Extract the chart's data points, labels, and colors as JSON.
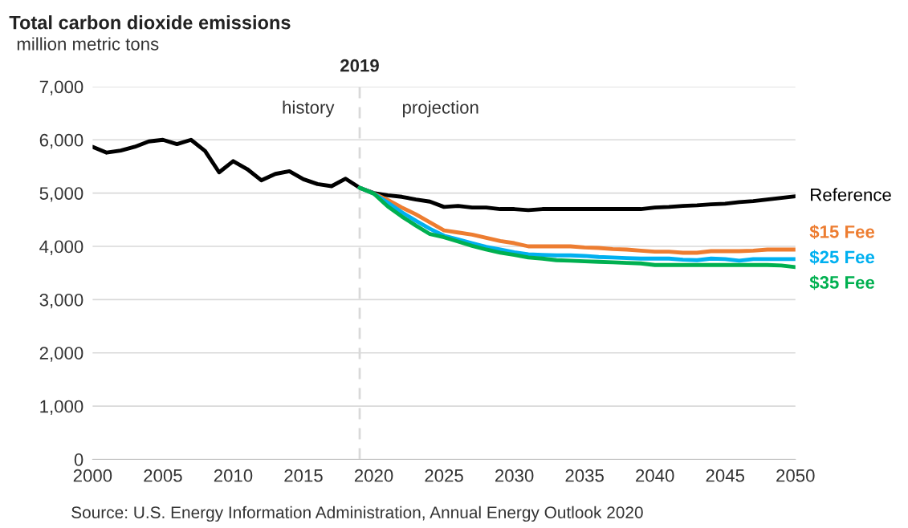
{
  "chart_data": {
    "type": "line",
    "title": "Total carbon dioxide emissions",
    "subtitle": "million metric tons",
    "series": [
      {
        "name": "Reference",
        "color": "#000000",
        "x": [
          2000,
          2001,
          2002,
          2003,
          2004,
          2005,
          2006,
          2007,
          2008,
          2009,
          2010,
          2011,
          2012,
          2013,
          2014,
          2015,
          2016,
          2017,
          2018,
          2019,
          2020,
          2021,
          2022,
          2023,
          2024,
          2025,
          2026,
          2027,
          2028,
          2029,
          2030,
          2031,
          2032,
          2033,
          2034,
          2035,
          2036,
          2037,
          2038,
          2039,
          2040,
          2041,
          2042,
          2043,
          2044,
          2045,
          2046,
          2047,
          2048,
          2049,
          2050
        ],
        "values": [
          5870,
          5760,
          5800,
          5870,
          5970,
          6000,
          5920,
          6000,
          5790,
          5390,
          5600,
          5450,
          5240,
          5360,
          5410,
          5260,
          5170,
          5130,
          5270,
          5100,
          5000,
          4960,
          4930,
          4880,
          4840,
          4740,
          4760,
          4730,
          4730,
          4700,
          4700,
          4680,
          4700,
          4700,
          4700,
          4700,
          4700,
          4700,
          4700,
          4700,
          4730,
          4740,
          4760,
          4770,
          4790,
          4800,
          4830,
          4850,
          4880,
          4910,
          4940
        ]
      },
      {
        "name": "$15 Fee",
        "color": "#ed7d31",
        "x": [
          2019,
          2020,
          2021,
          2022,
          2023,
          2024,
          2025,
          2026,
          2027,
          2028,
          2029,
          2030,
          2031,
          2032,
          2033,
          2034,
          2035,
          2036,
          2037,
          2038,
          2039,
          2040,
          2041,
          2042,
          2043,
          2044,
          2045,
          2046,
          2047,
          2048,
          2049,
          2050
        ],
        "values": [
          5100,
          4990,
          4870,
          4730,
          4600,
          4450,
          4300,
          4260,
          4220,
          4160,
          4100,
          4060,
          4000,
          4000,
          4000,
          4000,
          3980,
          3970,
          3950,
          3940,
          3920,
          3900,
          3900,
          3880,
          3880,
          3910,
          3910,
          3910,
          3920,
          3940,
          3940,
          3940
        ]
      },
      {
        "name": "$25 Fee",
        "color": "#00b0f0",
        "x": [
          2019,
          2020,
          2021,
          2022,
          2023,
          2024,
          2025,
          2026,
          2027,
          2028,
          2029,
          2030,
          2031,
          2032,
          2033,
          2034,
          2035,
          2036,
          2037,
          2038,
          2039,
          2040,
          2041,
          2042,
          2043,
          2044,
          2045,
          2046,
          2047,
          2048,
          2049,
          2050
        ],
        "values": [
          5100,
          4990,
          4820,
          4640,
          4480,
          4330,
          4200,
          4130,
          4060,
          3990,
          3940,
          3890,
          3850,
          3840,
          3830,
          3830,
          3820,
          3800,
          3790,
          3780,
          3770,
          3770,
          3770,
          3750,
          3740,
          3770,
          3760,
          3730,
          3760,
          3760,
          3760,
          3760
        ]
      },
      {
        "name": "$35 Fee",
        "color": "#00b050",
        "x": [
          2019,
          2020,
          2021,
          2022,
          2023,
          2024,
          2025,
          2026,
          2027,
          2028,
          2029,
          2030,
          2031,
          2032,
          2033,
          2034,
          2035,
          2036,
          2037,
          2038,
          2039,
          2040,
          2041,
          2042,
          2043,
          2044,
          2045,
          2046,
          2047,
          2048,
          2049,
          2050
        ],
        "values": [
          5100,
          4990,
          4750,
          4560,
          4390,
          4230,
          4170,
          4090,
          4010,
          3940,
          3880,
          3840,
          3790,
          3770,
          3740,
          3730,
          3720,
          3710,
          3700,
          3690,
          3680,
          3650,
          3650,
          3650,
          3650,
          3650,
          3650,
          3650,
          3650,
          3650,
          3640,
          3610
        ]
      }
    ],
    "xlim": [
      2000,
      2050
    ],
    "xticks": [
      2000,
      2005,
      2010,
      2015,
      2020,
      2025,
      2030,
      2035,
      2040,
      2045,
      2050
    ],
    "ylim": [
      0,
      7000
    ],
    "yticks": [
      {
        "value": 0,
        "label": "0"
      },
      {
        "value": 1000,
        "label": "1,000"
      },
      {
        "value": 2000,
        "label": "2,000"
      },
      {
        "value": 3000,
        "label": "3,000"
      },
      {
        "value": 4000,
        "label": "4,000"
      },
      {
        "value": 5000,
        "label": "5,000"
      },
      {
        "value": 6000,
        "label": "6,000"
      },
      {
        "value": 7000,
        "label": "7,000"
      }
    ],
    "grid": "y",
    "legend": false,
    "marker": "none",
    "line_style": "solid",
    "ref_lines": [
      {
        "axis": "x",
        "value": 2019,
        "label": "2019",
        "color": "#d9d9d9",
        "line_style": "dashed"
      }
    ],
    "annotations": [
      "history",
      "projection",
      "Source: U.S. Energy Information Administration, Annual Energy Outlook 2020"
    ]
  }
}
